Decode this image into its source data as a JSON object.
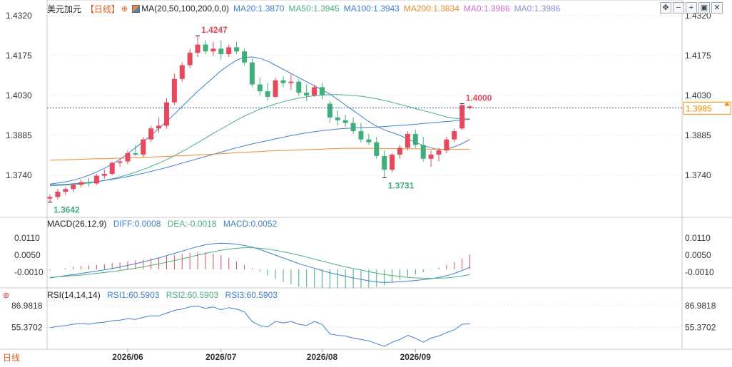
{
  "header": {
    "symbol": "美元加元",
    "period_tag": "【日线】",
    "ma_label": "MA(20,50,100,200,0,0)",
    "ma_values": [
      {
        "text": "MA20:1.3870",
        "color": "#3d7fd9"
      },
      {
        "text": "MA50:1.3945",
        "color": "#49b07e"
      },
      {
        "text": "MA100:1.3943",
        "color": "#3d7fd9"
      },
      {
        "text": "MA200:1.3834",
        "color": "#f08a2b"
      },
      {
        "text": "MA0:1.3986",
        "color": "#d86ad6"
      },
      {
        "text": "MA0:1.3986",
        "color": "#8f8fe0"
      }
    ]
  },
  "toolbar": {
    "icons": [
      "move-icon",
      "minus-icon",
      "plus-icon",
      "window-icon",
      "close-icon"
    ],
    "glyphs": [
      "✥",
      "−",
      "+",
      "▣",
      "✕"
    ]
  },
  "macd_legend": {
    "label": "MACD(26,12,9)",
    "diff": "DIFF:0.0008",
    "dea": "DEA:-0.0018",
    "macd": "MACD:0.0052"
  },
  "rsi_legend": {
    "label": "RSI(14,14,14)",
    "rsi1": "RSI1:60.5903",
    "rsi2": "RSI2:60.5903",
    "rsi3": "RSI3:60.5903"
  },
  "period_bottom": "日线",
  "colors": {
    "up": "#e8485c",
    "down": "#3fae7a",
    "ma20": "#3d7fd9",
    "ma50": "#49b07e",
    "ma100": "#3d7fd9",
    "ma200": "#f08a2b",
    "grid": "#e6e6e6",
    "last_price": "#f28c00"
  },
  "chart_data": [
    {
      "type": "candlestick",
      "title": "美元加元",
      "x_ticks": [
        "2026/06",
        "2026/07",
        "2026/08",
        "2026/09"
      ],
      "x_tick_index": [
        10,
        22,
        35,
        47
      ],
      "y_ticks": [
        "1.4320",
        "1.4175",
        "1.4030",
        "1.3885",
        "1.3740"
      ],
      "ylim": [
        1.3605,
        1.432
      ],
      "grid": true,
      "annotations": [
        {
          "text": "1.4247",
          "index": 19,
          "value": 1.4247
        },
        {
          "text": "1.3731",
          "index": 43,
          "value": 1.3731
        },
        {
          "text": "1.3642",
          "index": 0,
          "value": 1.3642
        },
        {
          "text": "1.4000",
          "index": 53,
          "value": 1.4
        }
      ],
      "last_price": {
        "text": "1.3985",
        "value": 1.3985
      },
      "ohlc": [
        [
          1.3655,
          1.367,
          1.3642,
          1.3661
        ],
        [
          1.3661,
          1.369,
          1.3652,
          1.368
        ],
        [
          1.368,
          1.3698,
          1.3668,
          1.369
        ],
        [
          1.369,
          1.3712,
          1.368,
          1.3705
        ],
        [
          1.3705,
          1.3725,
          1.3695,
          1.3715
        ],
        [
          1.3715,
          1.373,
          1.37,
          1.371
        ],
        [
          1.371,
          1.3745,
          1.3705,
          1.3738
        ],
        [
          1.3738,
          1.376,
          1.3728,
          1.3745
        ],
        [
          1.3745,
          1.379,
          1.374,
          1.3785
        ],
        [
          1.3785,
          1.38,
          1.377,
          1.379
        ],
        [
          1.379,
          1.383,
          1.378,
          1.382
        ],
        [
          1.382,
          1.385,
          1.381,
          1.3815
        ],
        [
          1.3815,
          1.388,
          1.3805,
          1.387
        ],
        [
          1.387,
          1.392,
          1.386,
          1.391
        ],
        [
          1.391,
          1.395,
          1.3895,
          1.392
        ],
        [
          1.392,
          1.402,
          1.391,
          1.4005
        ],
        [
          1.4005,
          1.411,
          1.3995,
          1.409
        ],
        [
          1.409,
          1.415,
          1.408,
          1.414
        ],
        [
          1.414,
          1.42,
          1.413,
          1.4185
        ],
        [
          1.4185,
          1.4247,
          1.417,
          1.4215
        ],
        [
          1.4215,
          1.423,
          1.418,
          1.419
        ],
        [
          1.419,
          1.4225,
          1.4175,
          1.42
        ],
        [
          1.42,
          1.423,
          1.416,
          1.418
        ],
        [
          1.418,
          1.4215,
          1.417,
          1.4205
        ],
        [
          1.4205,
          1.4225,
          1.418,
          1.419
        ],
        [
          1.419,
          1.42,
          1.414,
          1.415
        ],
        [
          1.415,
          1.4165,
          1.406,
          1.407
        ],
        [
          1.407,
          1.4095,
          1.403,
          1.4045
        ],
        [
          1.4045,
          1.4075,
          1.401,
          1.4025
        ],
        [
          1.4025,
          1.4095,
          1.402,
          1.4085
        ],
        [
          1.4085,
          1.41,
          1.406,
          1.4075
        ],
        [
          1.4075,
          1.411,
          1.405,
          1.408
        ],
        [
          1.408,
          1.409,
          1.403,
          1.404
        ],
        [
          1.404,
          1.407,
          1.401,
          1.403
        ],
        [
          1.403,
          1.407,
          1.4025,
          1.406
        ],
        [
          1.406,
          1.4075,
          1.4015,
          1.403
        ],
        [
          1.4,
          1.401,
          1.393,
          1.395
        ],
        [
          1.395,
          1.3975,
          1.392,
          1.394
        ],
        [
          1.394,
          1.396,
          1.3915,
          1.393
        ],
        [
          1.393,
          1.395,
          1.389,
          1.39
        ],
        [
          1.39,
          1.393,
          1.386,
          1.387
        ],
        [
          1.387,
          1.389,
          1.385,
          1.386
        ],
        [
          1.386,
          1.388,
          1.38,
          1.381
        ],
        [
          1.381,
          1.383,
          1.3731,
          1.376
        ],
        [
          1.376,
          1.382,
          1.375,
          1.3815
        ],
        [
          1.3815,
          1.385,
          1.38,
          1.384
        ],
        [
          1.384,
          1.39,
          1.383,
          1.389
        ],
        [
          1.389,
          1.3905,
          1.384,
          1.385
        ],
        [
          1.385,
          1.388,
          1.379,
          1.38
        ],
        [
          1.38,
          1.383,
          1.377,
          1.3815
        ],
        [
          1.3815,
          1.384,
          1.379,
          1.383
        ],
        [
          1.383,
          1.388,
          1.382,
          1.387
        ],
        [
          1.387,
          1.391,
          1.386,
          1.39
        ],
        [
          1.391,
          1.4,
          1.3905,
          1.3995
        ],
        [
          1.3985,
          1.3995,
          1.398,
          1.399
        ]
      ],
      "series": [
        {
          "name": "MA20",
          "values": [
            1.3708,
            1.3712,
            1.3716,
            1.3722,
            1.373,
            1.374,
            1.3752,
            1.3765,
            1.378,
            1.3798,
            1.3818,
            1.384,
            1.3862,
            1.3885,
            1.391,
            1.3935,
            1.3962,
            1.399,
            1.4018,
            1.4045,
            1.407,
            1.4095,
            1.412,
            1.414,
            1.4158,
            1.4168,
            1.417,
            1.4165,
            1.4155,
            1.414,
            1.4125,
            1.411,
            1.4095,
            1.408,
            1.4065,
            1.405,
            1.4035,
            1.4015,
            1.3995,
            1.3975,
            1.3955,
            1.3935,
            1.3918,
            1.3905,
            1.3895,
            1.3885,
            1.3872,
            1.386,
            1.3848,
            1.384,
            1.3833,
            1.3835,
            1.3843,
            1.3855,
            1.387
          ]
        },
        {
          "name": "MA50",
          "values": [
            1.3702,
            1.3703,
            1.3704,
            1.3706,
            1.3708,
            1.3712,
            1.3716,
            1.3721,
            1.3727,
            1.3734,
            1.3742,
            1.3751,
            1.3761,
            1.3772,
            1.3784,
            1.3797,
            1.3811,
            1.3826,
            1.3842,
            1.3858,
            1.3875,
            1.3892,
            1.3908,
            1.3924,
            1.394,
            1.3955,
            1.3968,
            1.398,
            1.399,
            1.3999,
            1.4007,
            1.4014,
            1.402,
            1.4025,
            1.4029,
            1.4032,
            1.4033,
            1.4033,
            1.4032,
            1.403,
            1.4027,
            1.4023,
            1.4018,
            1.4012,
            1.4005,
            1.3998,
            1.399,
            1.3982,
            1.3975,
            1.3968,
            1.396,
            1.3952,
            1.3947,
            1.3945,
            1.3945
          ]
        },
        {
          "name": "MA100",
          "values": [
            1.3705,
            1.3706,
            1.3707,
            1.3709,
            1.3711,
            1.3714,
            1.3717,
            1.3721,
            1.3725,
            1.373,
            1.3735,
            1.3741,
            1.3747,
            1.3754,
            1.3761,
            1.3768,
            1.3776,
            1.3784,
            1.3792,
            1.38,
            1.3808,
            1.3816,
            1.3824,
            1.3832,
            1.384,
            1.3847,
            1.3854,
            1.386,
            1.3866,
            1.3872,
            1.3878,
            1.3884,
            1.3889,
            1.3894,
            1.3898,
            1.3902,
            1.3905,
            1.3908,
            1.391,
            1.3912,
            1.3913,
            1.3914,
            1.3915,
            1.3917,
            1.3919,
            1.3921,
            1.3923,
            1.3925,
            1.3928,
            1.393,
            1.3933,
            1.3935,
            1.3938,
            1.3941,
            1.3943
          ]
        },
        {
          "name": "MA200",
          "values": [
            1.3795,
            1.3796,
            1.3796,
            1.3797,
            1.3798,
            1.3799,
            1.38,
            1.38,
            1.3801,
            1.3802,
            1.3803,
            1.3804,
            1.3805,
            1.3806,
            1.3807,
            1.3808,
            1.381,
            1.3811,
            1.3812,
            1.3814,
            1.3815,
            1.3817,
            1.3818,
            1.382,
            1.3822,
            1.3823,
            1.3825,
            1.3826,
            1.3828,
            1.3829,
            1.383,
            1.3831,
            1.3832,
            1.3833,
            1.3834,
            1.3835,
            1.3836,
            1.3837,
            1.3838,
            1.3838,
            1.3838,
            1.3838,
            1.3838,
            1.3837,
            1.3837,
            1.3836,
            1.3836,
            1.3836,
            1.3835,
            1.3835,
            1.3835,
            1.3834,
            1.3834,
            1.3834,
            1.3834
          ]
        }
      ]
    },
    {
      "type": "bar",
      "title": "MACD(26,12,9)",
      "y_ticks": [
        "0.0110",
        "0.0050",
        "-0.0010"
      ],
      "ylim": [
        -0.006,
        0.014
      ],
      "series": [
        {
          "name": "DIFF",
          "values": [
            -0.003,
            -0.0026,
            -0.0022,
            -0.0018,
            -0.0014,
            -0.001,
            -0.0006,
            -0.0002,
            0.0003,
            0.0008,
            0.0014,
            0.002,
            0.0026,
            0.0033,
            0.004,
            0.0048,
            0.0056,
            0.0064,
            0.0072,
            0.008,
            0.0086,
            0.009,
            0.0092,
            0.0091,
            0.0088,
            0.0084,
            0.0078,
            0.007,
            0.006,
            0.005,
            0.004,
            0.003,
            0.002,
            0.0012,
            0.0004,
            -0.0004,
            -0.0012,
            -0.0018,
            -0.0024,
            -0.003,
            -0.0035,
            -0.004,
            -0.0044,
            -0.0046,
            -0.0045,
            -0.0043,
            -0.0041,
            -0.0039,
            -0.0036,
            -0.0033,
            -0.0028,
            -0.0022,
            -0.0014,
            -0.0004,
            0.0008
          ]
        },
        {
          "name": "DEA",
          "values": [
            -0.0028,
            -0.0026,
            -0.0024,
            -0.0022,
            -0.002,
            -0.0017,
            -0.0014,
            -0.0011,
            -0.0008,
            -0.0004,
            0.0,
            0.0004,
            0.0009,
            0.0014,
            0.0019,
            0.0025,
            0.0031,
            0.0037,
            0.0043,
            0.005,
            0.0056,
            0.0062,
            0.0067,
            0.0071,
            0.0074,
            0.0076,
            0.0076,
            0.0074,
            0.0071,
            0.0067,
            0.0062,
            0.0056,
            0.005,
            0.0043,
            0.0036,
            0.0029,
            0.0022,
            0.0015,
            0.0009,
            0.0003,
            -0.0002,
            -0.0008,
            -0.0013,
            -0.0018,
            -0.0022,
            -0.0025,
            -0.0028,
            -0.003,
            -0.0031,
            -0.0032,
            -0.0031,
            -0.003,
            -0.0027,
            -0.0023,
            -0.0018
          ]
        },
        {
          "name": "MACD",
          "values": [
            -0.0004,
            0.0,
            0.0004,
            0.0008,
            0.0012,
            0.0014,
            0.0016,
            0.0018,
            0.0022,
            0.0024,
            0.0028,
            0.0032,
            0.0034,
            0.0038,
            0.0042,
            0.0046,
            0.005,
            0.0054,
            0.0058,
            0.006,
            0.006,
            0.0056,
            0.005,
            0.004,
            0.0028,
            0.0016,
            0.0004,
            -0.0008,
            -0.0022,
            -0.0034,
            -0.0044,
            -0.0052,
            -0.006,
            -0.0062,
            -0.0064,
            -0.0066,
            -0.0068,
            -0.0066,
            -0.0066,
            -0.0066,
            -0.0066,
            -0.0064,
            -0.0062,
            -0.0056,
            -0.0046,
            -0.0036,
            -0.0026,
            -0.0018,
            -0.001,
            -0.0002,
            0.0006,
            0.0016,
            0.0026,
            0.0038,
            0.0052
          ]
        }
      ]
    },
    {
      "type": "line",
      "title": "RSI(14,14,14)",
      "y_ticks": [
        "86.9818",
        "55.3702"
      ],
      "ylim": [
        24,
        96
      ],
      "series": [
        {
          "name": "RSI1",
          "values": [
            55,
            57,
            58,
            60,
            61,
            60,
            62,
            63,
            65,
            66,
            68,
            67,
            70,
            72,
            72,
            76,
            80,
            82,
            85,
            86,
            83,
            85,
            81,
            84,
            82,
            78,
            64,
            58,
            56,
            64,
            62,
            64,
            60,
            58,
            64,
            60,
            46,
            44,
            43,
            40,
            38,
            36,
            32,
            28,
            34,
            38,
            44,
            40,
            34,
            40,
            43,
            48,
            52,
            60,
            60.59
          ]
        }
      ]
    }
  ]
}
